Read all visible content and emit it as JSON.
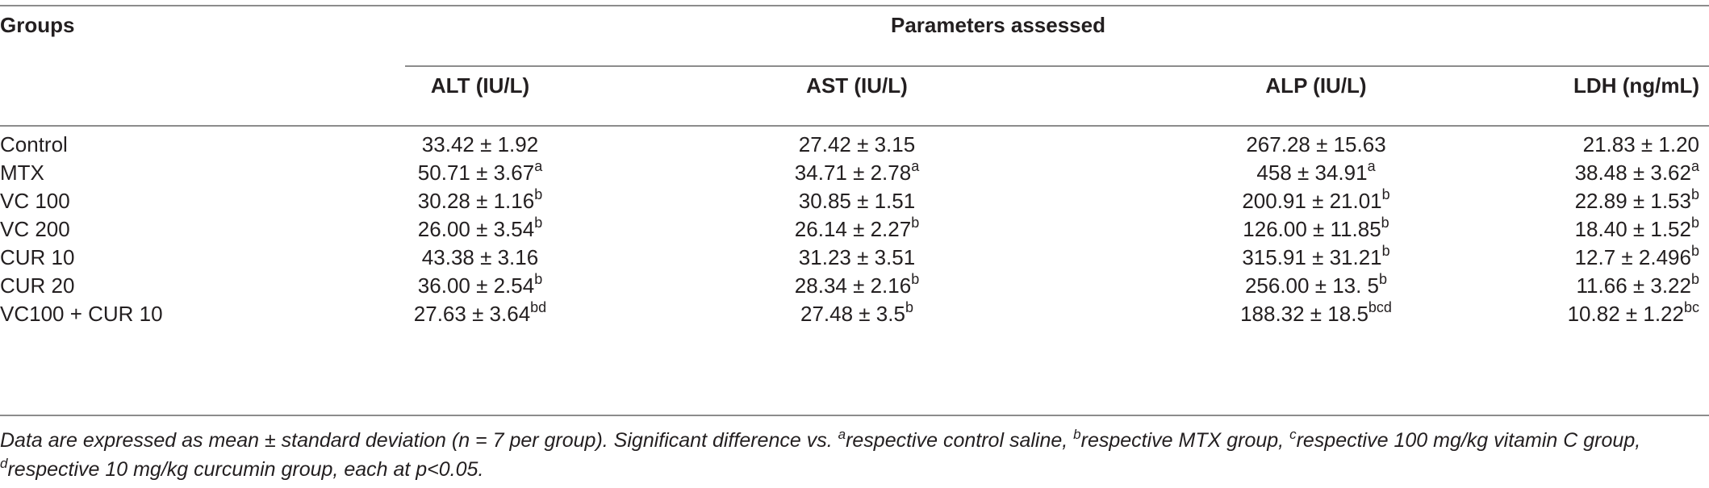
{
  "table": {
    "groups_label": "Groups",
    "parameters_label": "Parameters assessed",
    "columns": [
      "ALT (IU/L)",
      "AST (IU/L)",
      "ALP (IU/L)",
      "LDH (ng/mL)"
    ],
    "rows": [
      {
        "group": "Control",
        "cells": [
          {
            "value": "33.42 ± 1.92",
            "sup": ""
          },
          {
            "value": "27.42 ± 3.15",
            "sup": ""
          },
          {
            "value": "267.28 ± 15.63",
            "sup": ""
          },
          {
            "value": "21.83 ± 1.20",
            "sup": ""
          }
        ]
      },
      {
        "group": "MTX",
        "cells": [
          {
            "value": "50.71 ± 3.67",
            "sup": "a"
          },
          {
            "value": "34.71 ± 2.78",
            "sup": "a"
          },
          {
            "value": "458 ± 34.91",
            "sup": "a"
          },
          {
            "value": "38.48 ± 3.62",
            "sup": "a"
          }
        ]
      },
      {
        "group": "VC 100",
        "cells": [
          {
            "value": "30.28 ± 1.16",
            "sup": "b"
          },
          {
            "value": "30.85 ± 1.51",
            "sup": ""
          },
          {
            "value": "200.91 ± 21.01",
            "sup": "b"
          },
          {
            "value": "22.89 ± 1.53",
            "sup": "b"
          }
        ]
      },
      {
        "group": "VC 200",
        "cells": [
          {
            "value": "26.00 ± 3.54",
            "sup": "b"
          },
          {
            "value": "26.14 ± 2.27",
            "sup": "b"
          },
          {
            "value": "126.00 ± 11.85",
            "sup": "b"
          },
          {
            "value": "18.40 ± 1.52",
            "sup": "b"
          }
        ]
      },
      {
        "group": "CUR 10",
        "cells": [
          {
            "value": "43.38 ± 3.16",
            "sup": ""
          },
          {
            "value": "31.23 ± 3.51",
            "sup": ""
          },
          {
            "value": "315.91 ± 31.21",
            "sup": "b"
          },
          {
            "value": "12.7 ± 2.496",
            "sup": "b"
          }
        ]
      },
      {
        "group": "CUR 20",
        "cells": [
          {
            "value": "36.00 ± 2.54",
            "sup": "b"
          },
          {
            "value": "28.34 ± 2.16",
            "sup": "b"
          },
          {
            "value": "256.00 ± 13. 5",
            "sup": "b"
          },
          {
            "value": "11.66 ± 3.22",
            "sup": "b"
          }
        ]
      },
      {
        "group": "VC100 + CUR 10",
        "cells": [
          {
            "value": "27.63 ± 3.64",
            "sup": "bd"
          },
          {
            "value": "27.48 ± 3.5",
            "sup": "b"
          },
          {
            "value": "188.32 ± 18.5",
            "sup": "bcd"
          },
          {
            "value": "10.82 ± 1.22",
            "sup": "bc"
          }
        ]
      }
    ]
  },
  "footnote": {
    "line1_text": "Data are expressed as mean ± standard deviation (n = 7 per group). Significant difference vs. ",
    "sup_a": "a",
    "text_a": "respective control saline, ",
    "sup_b": "b",
    "text_b": "respective MTX group, ",
    "sup_c": "c",
    "text_c": "respective 100 mg/kg vitamin C group, ",
    "sup_d": "d",
    "text_d": "respective 10 mg/kg curcumin group, each at p<0.05."
  }
}
